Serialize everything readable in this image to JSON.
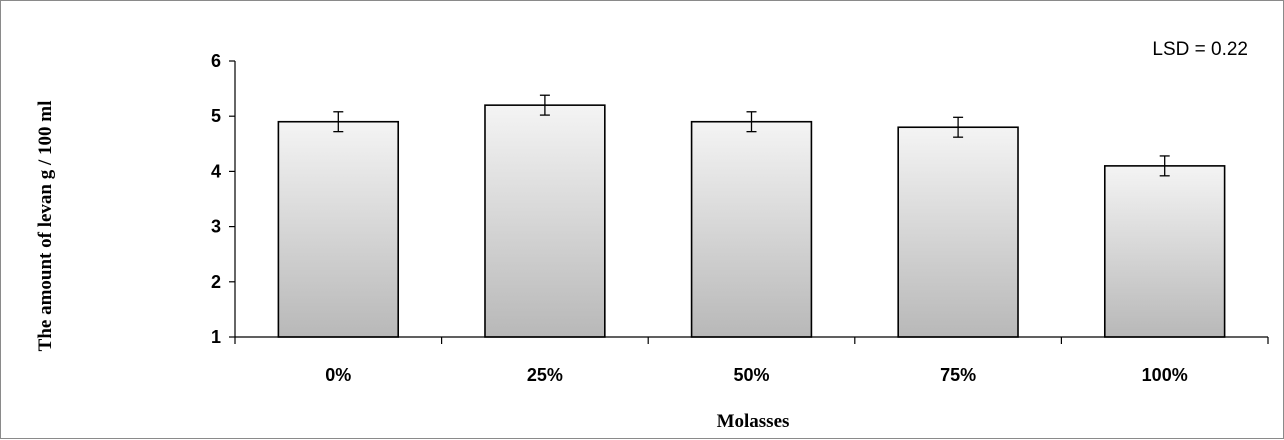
{
  "chart_data": {
    "type": "bar",
    "title": "",
    "categories": [
      "0%",
      "25%",
      "50%",
      "75%",
      "100%"
    ],
    "values": [
      4.9,
      5.2,
      4.9,
      4.8,
      4.1
    ],
    "error": [
      0.18,
      0.18,
      0.18,
      0.18,
      0.18
    ],
    "xlabel": "Molasses",
    "ylabel": "The amount of levan g / 100 ml",
    "ylim": [
      1,
      6
    ],
    "yticks": [
      1,
      2,
      3,
      4,
      5,
      6
    ],
    "grid": false,
    "legend": "none",
    "annotation": "LSD = 0.22",
    "colors": {
      "bar_top": "#f4f4f4",
      "bar_bottom": "#b8b8b8",
      "bar_edge": "#000000",
      "axis": "#000000",
      "frame": "#8a8a8a"
    }
  }
}
